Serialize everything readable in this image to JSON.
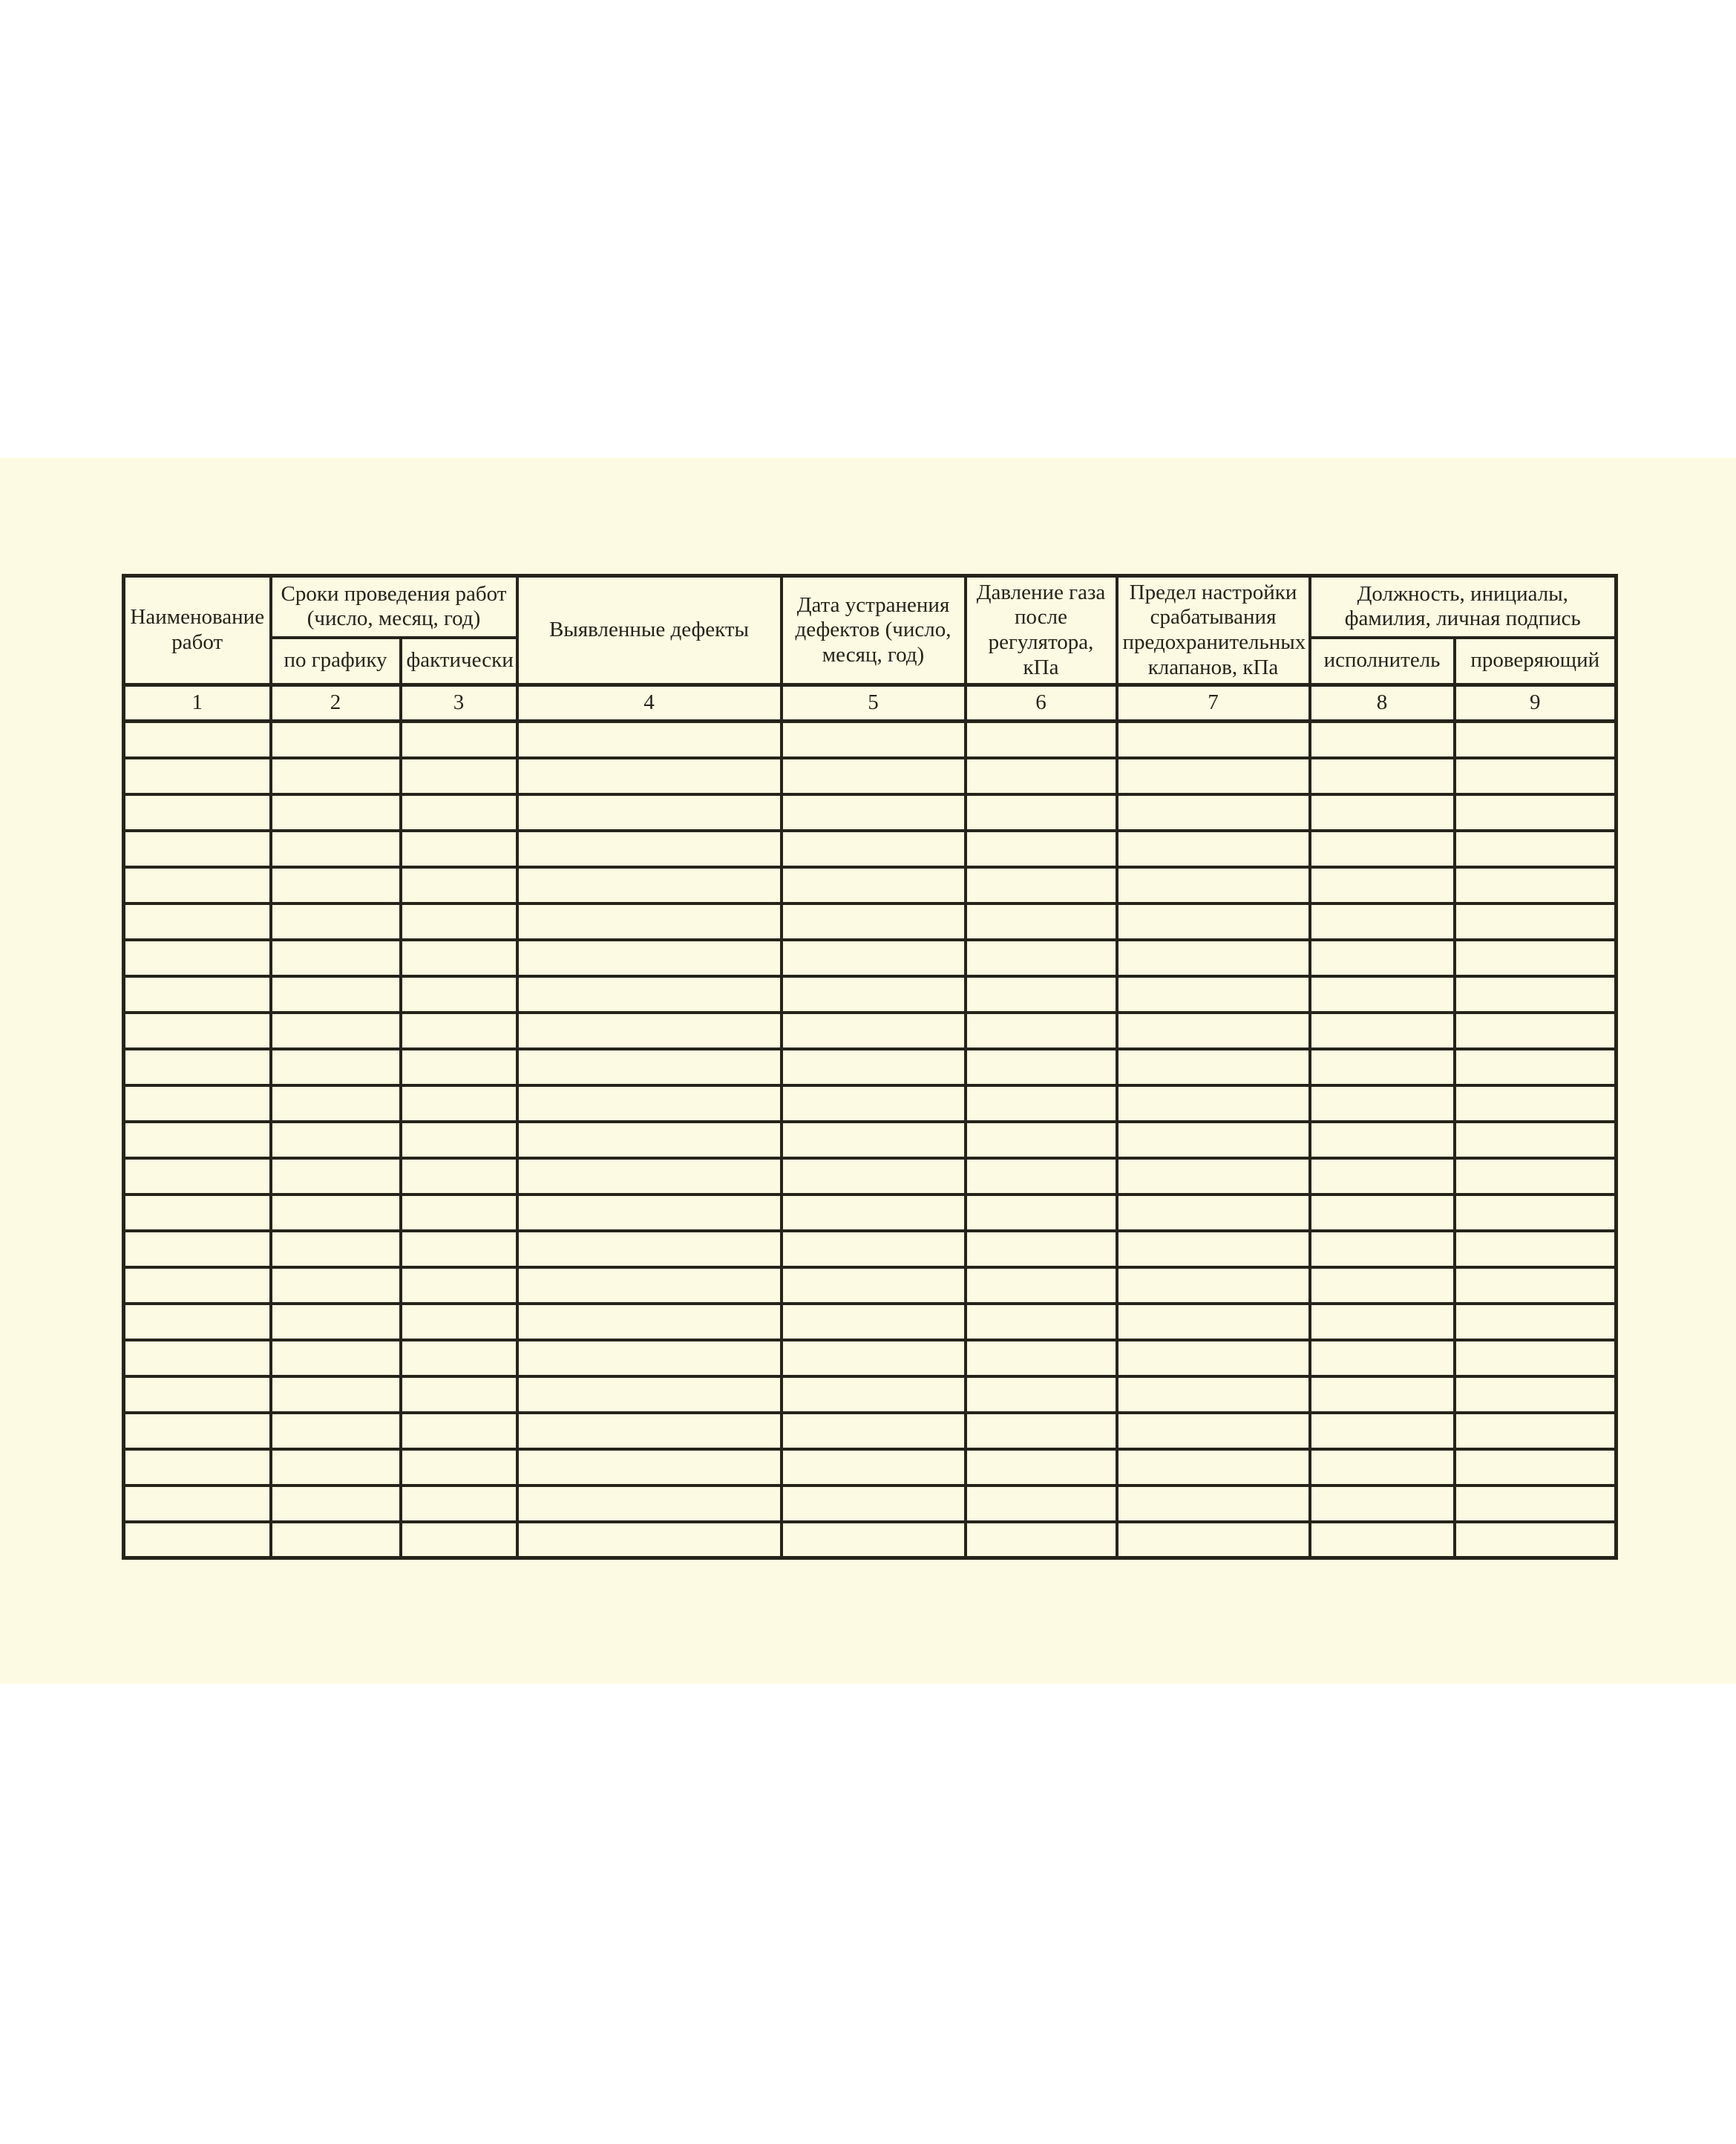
{
  "colors": {
    "page_background": "#ffffff",
    "paper": "#fcfae2",
    "ink": "#26241a"
  },
  "table": {
    "headers": {
      "work_name": "Наименование работ",
      "work_dates_group": "Сроки проведения работ (число, месяц, год)",
      "by_schedule": "по графику",
      "actual": "фактически",
      "defects_found": "Выявленные дефекты",
      "defects_fixed_date": "Дата устранения дефектов (число, месяц, год)",
      "gas_pressure_after_regulator": "Давление газа после регулятора, кПа",
      "safety_valve_setting_limit": "Предел настройки срабатывания предохранительных клапанов, кПа",
      "position_initials_signature_group": "Должность, инициалы, фамилия, личная подпись",
      "executor": "исполнитель",
      "inspector": "проверяющий"
    },
    "column_numbers": [
      "1",
      "2",
      "3",
      "4",
      "5",
      "6",
      "7",
      "8",
      "9"
    ],
    "empty_row_count": 23,
    "columns_in_row": 9
  }
}
